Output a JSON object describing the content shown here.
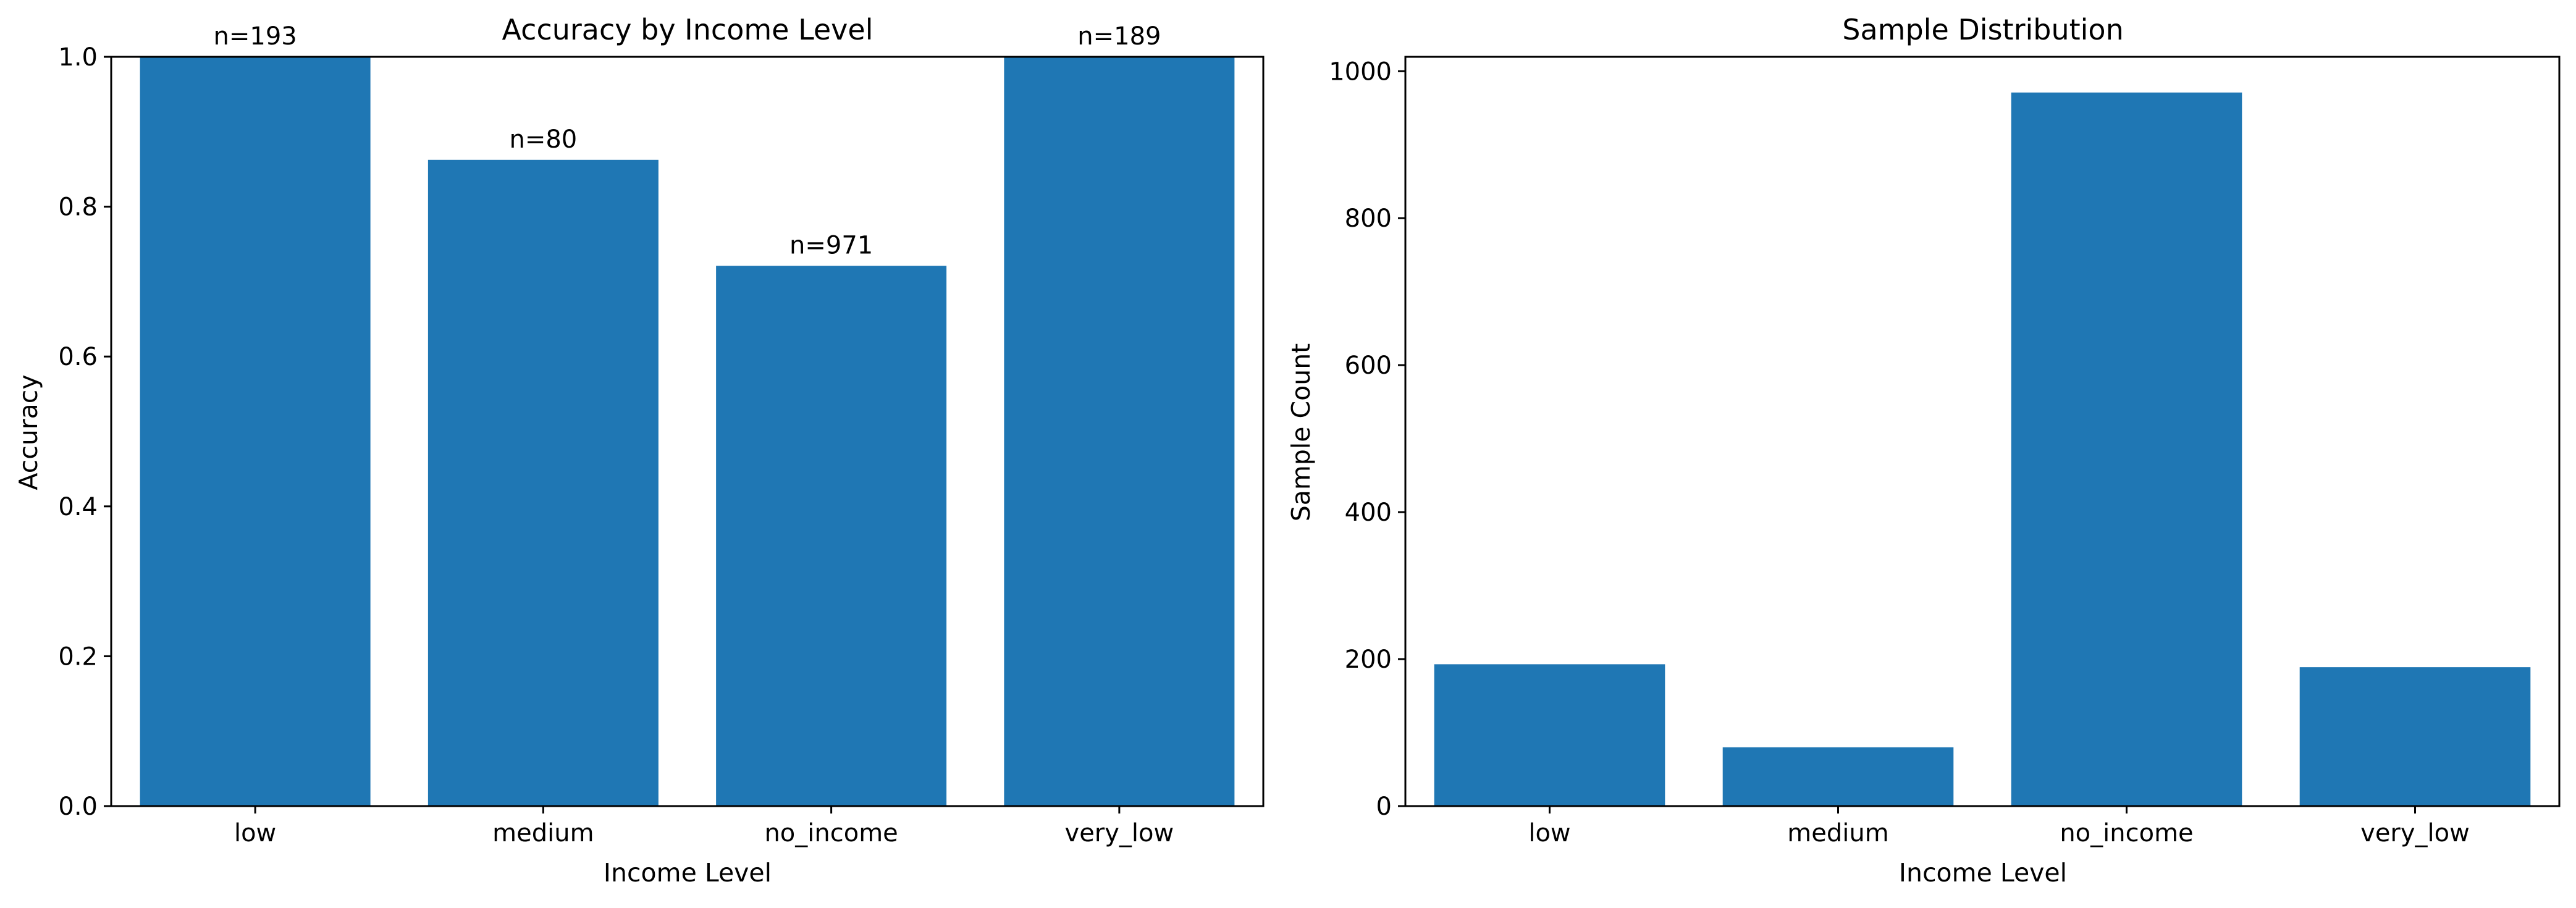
{
  "chart_data": [
    {
      "type": "bar",
      "title": "Accuracy by Income Level",
      "xlabel": "Income Level",
      "ylabel": "Accuracy",
      "categories": [
        "low",
        "medium",
        "no_income",
        "very_low"
      ],
      "values": [
        1.0,
        0.8625,
        0.721,
        1.0
      ],
      "annotations": [
        "n=193",
        "n=80",
        "n=971",
        "n=189"
      ],
      "ylim": [
        0,
        1.0
      ],
      "yticks": [
        0.0,
        0.2,
        0.4,
        0.6,
        0.8,
        1.0
      ],
      "ytick_labels": [
        "0.0",
        "0.2",
        "0.4",
        "0.6",
        "0.8",
        "1.0"
      ],
      "grid": false,
      "color": "#1f77b4"
    },
    {
      "type": "bar",
      "title": "Sample Distribution",
      "xlabel": "Income Level",
      "ylabel": "Sample Count",
      "categories": [
        "low",
        "medium",
        "no_income",
        "very_low"
      ],
      "values": [
        193,
        80,
        971,
        189
      ],
      "ylim": [
        0,
        1019.55
      ],
      "yticks": [
        0,
        200,
        400,
        600,
        800,
        1000
      ],
      "ytick_labels": [
        "0",
        "200",
        "400",
        "600",
        "800",
        "1000"
      ],
      "grid": false,
      "color": "#1f77b4"
    }
  ]
}
